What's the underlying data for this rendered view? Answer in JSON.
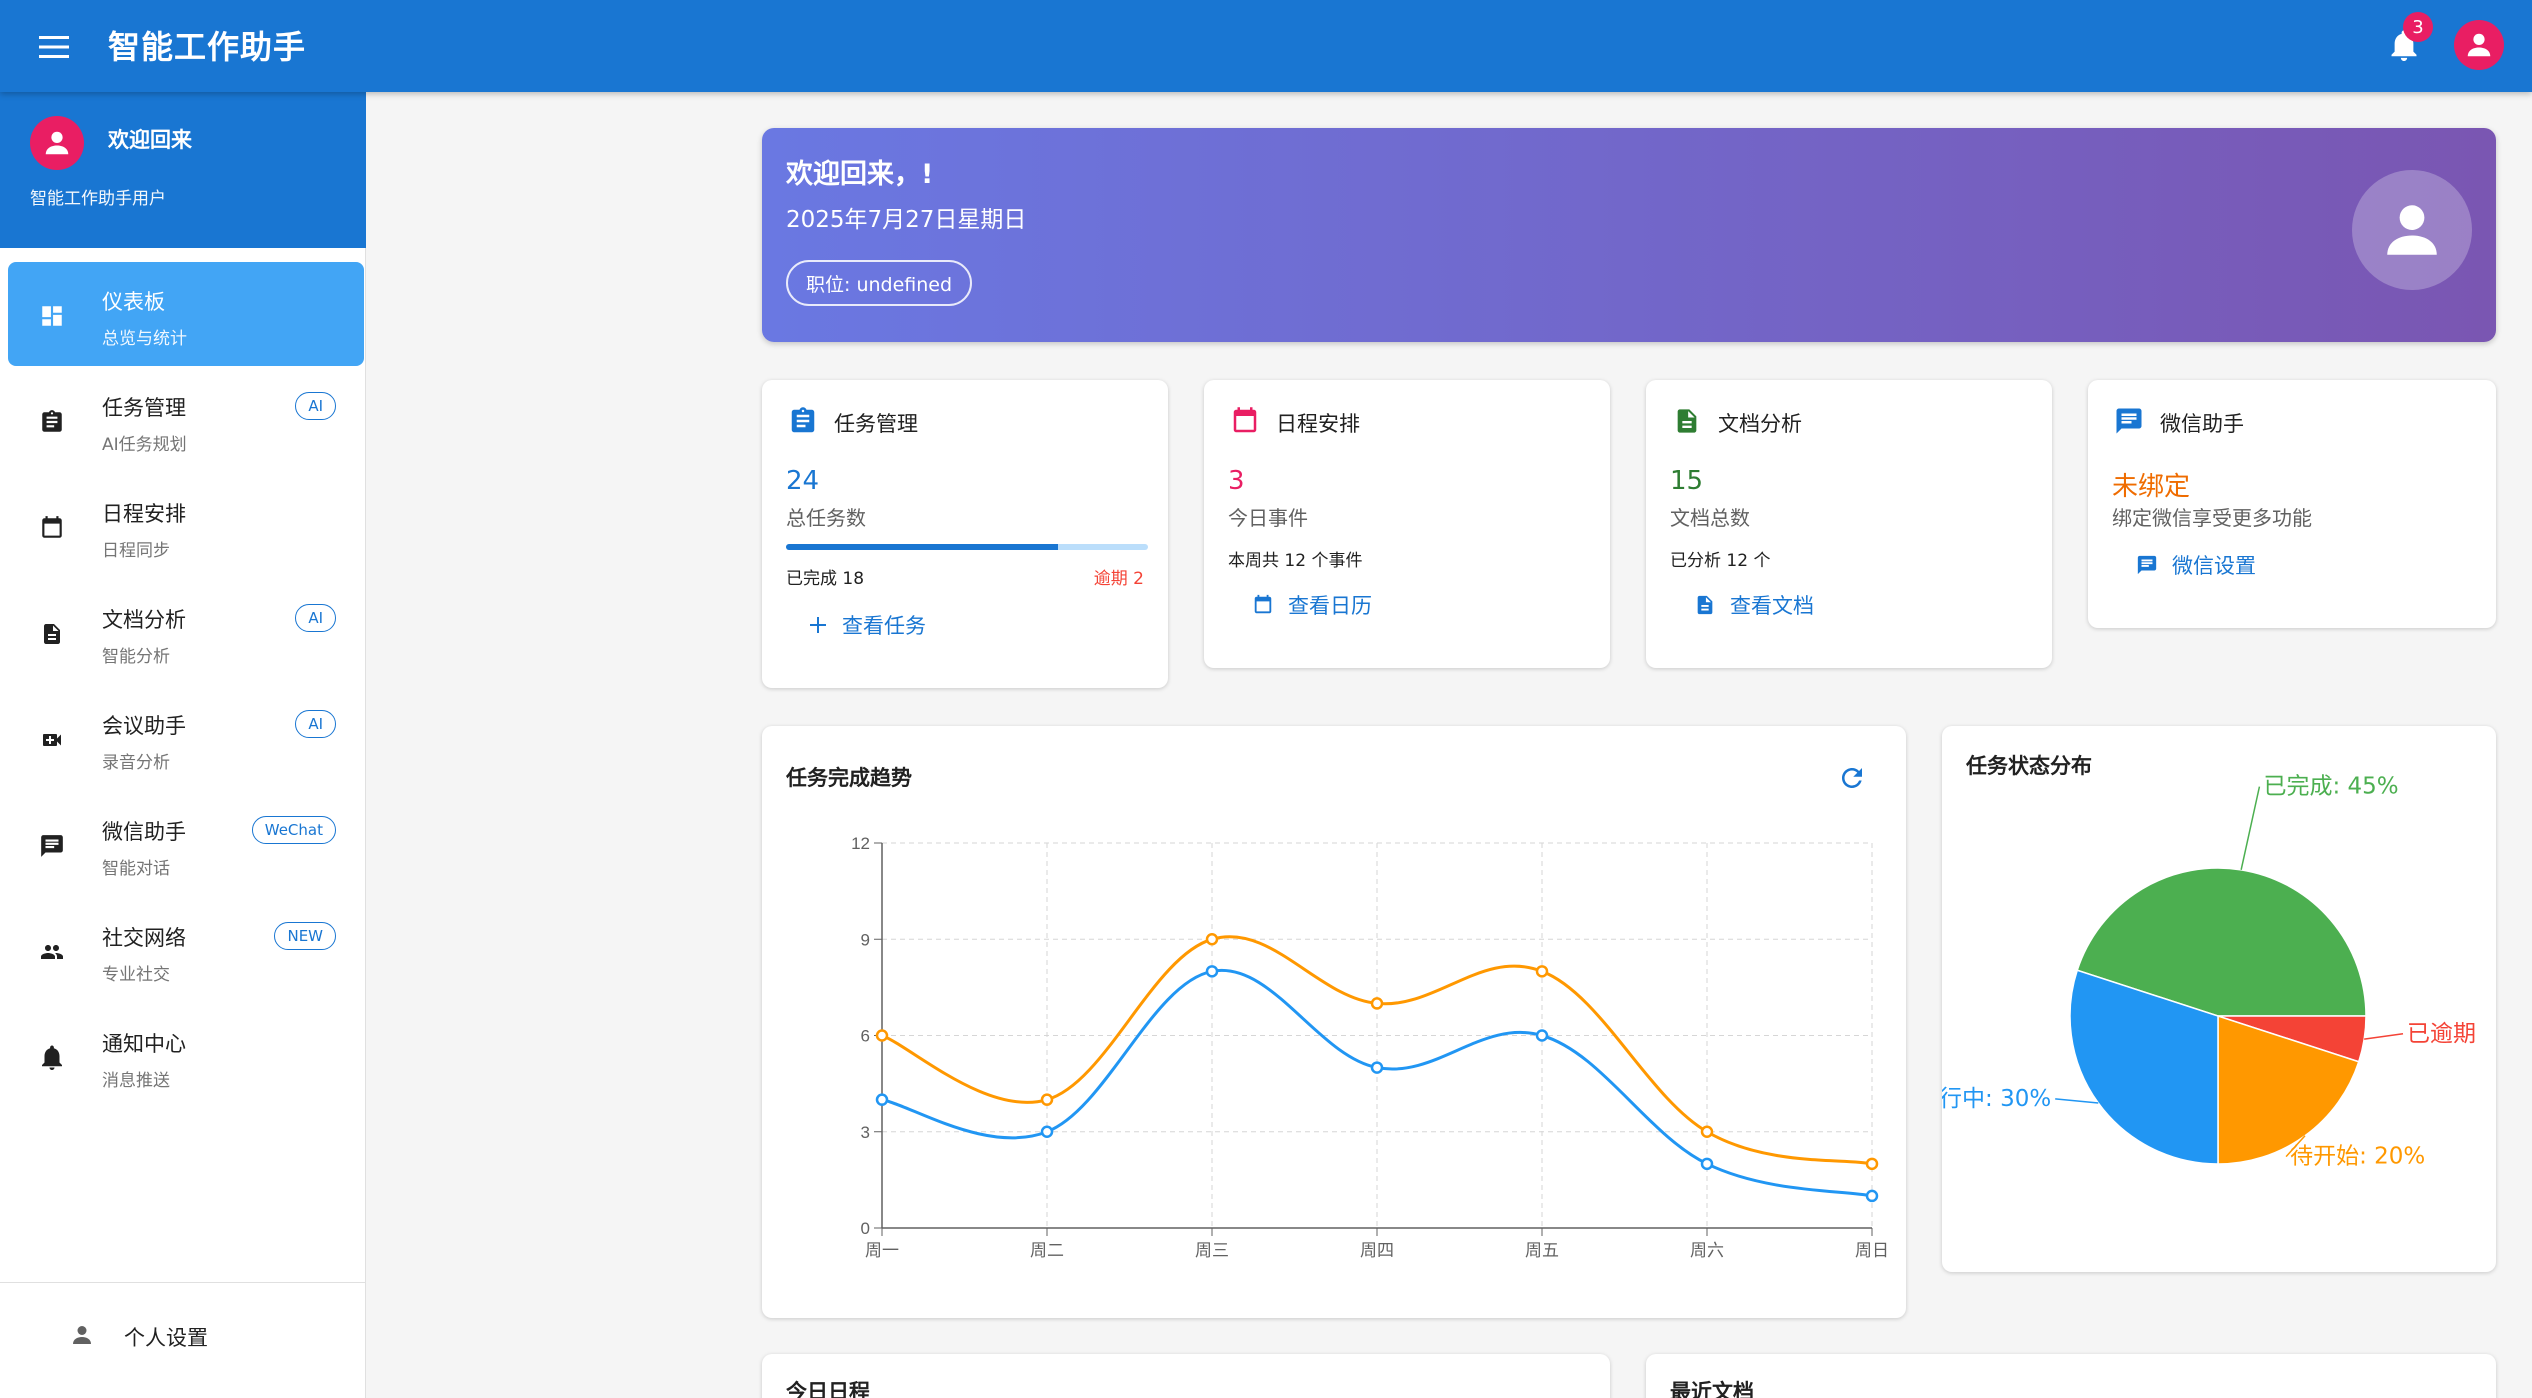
{
  "appbar": {
    "title": "智能工作助手",
    "notification_count": "3"
  },
  "sidebar": {
    "header": {
      "welcome": "欢迎回来",
      "subtitle": "智能工作助手用户"
    },
    "items": [
      {
        "label": "仪表板",
        "sub": "总览与统计",
        "badge": "",
        "icon": "dashboard-icon",
        "active": true
      },
      {
        "label": "任务管理",
        "sub": "AI任务规划",
        "badge": "AI",
        "icon": "assignment-icon"
      },
      {
        "label": "日程安排",
        "sub": "日程同步",
        "badge": "",
        "icon": "calendar-icon"
      },
      {
        "label": "文档分析",
        "sub": "智能分析",
        "badge": "AI",
        "icon": "document-icon"
      },
      {
        "label": "会议助手",
        "sub": "录音分析",
        "badge": "AI",
        "icon": "video-call-icon"
      },
      {
        "label": "微信助手",
        "sub": "智能对话",
        "badge": "WeChat",
        "icon": "chat-icon"
      },
      {
        "label": "社交网络",
        "sub": "专业社交",
        "badge": "NEW",
        "icon": "people-icon"
      },
      {
        "label": "通知中心",
        "sub": "消息推送",
        "badge": "",
        "icon": "bell-icon"
      }
    ],
    "settings_label": "个人设置"
  },
  "hero": {
    "title": "欢迎回来，!",
    "date": "2025年7月27日星期日",
    "role": "职位: undefined"
  },
  "stats": {
    "tasks": {
      "title": "任务管理",
      "value": "24",
      "label": "总任务数",
      "completed": "已完成 18",
      "overdue": "逾期 2",
      "progress": 0.75,
      "action": "查看任务"
    },
    "schedule": {
      "title": "日程安排",
      "value": "3",
      "label": "今日事件",
      "detail": "本周共 12 个事件",
      "action": "查看日历"
    },
    "docs": {
      "title": "文档分析",
      "value": "15",
      "label": "文档总数",
      "detail": "已分析 12 个",
      "action": "查看文档"
    },
    "wechat": {
      "title": "微信助手",
      "value": "未绑定",
      "label": "绑定微信享受更多功能",
      "action": "微信设置"
    }
  },
  "colors": {
    "primary": "#1976d2",
    "accent": "#e91e63",
    "success": "#4caf50",
    "warning": "#ff9800",
    "danger": "#f44336",
    "info": "#2196f3"
  },
  "chart_data": [
    {
      "type": "line",
      "title": "任务完成趋势",
      "categories": [
        "周一",
        "周二",
        "周三",
        "周四",
        "周五",
        "周六",
        "周日"
      ],
      "series": [
        {
          "values": [
            6,
            4,
            9,
            7,
            8,
            3,
            2
          ],
          "color": "#ff9800"
        },
        {
          "values": [
            4,
            3,
            8,
            5,
            6,
            2,
            1
          ],
          "color": "#2196f3"
        }
      ],
      "ylim": [
        0,
        12
      ],
      "yticks": [
        0,
        3,
        6,
        9,
        12
      ],
      "grid": true,
      "smooth": true
    },
    {
      "type": "pie",
      "title": "任务状态分布",
      "slices": [
        {
          "label": "已完成: 45%",
          "value": 45,
          "color": "#4caf50"
        },
        {
          "label": "已逾期",
          "value": 5,
          "color": "#f44336"
        },
        {
          "label": "待开始: 20%",
          "value": 20,
          "color": "#ff9800"
        },
        {
          "label": "行中: 30%",
          "value": 30,
          "color": "#2196f3"
        }
      ]
    }
  ],
  "bottom": {
    "today_schedule": "今日日程",
    "recent_docs": "最近文档"
  }
}
